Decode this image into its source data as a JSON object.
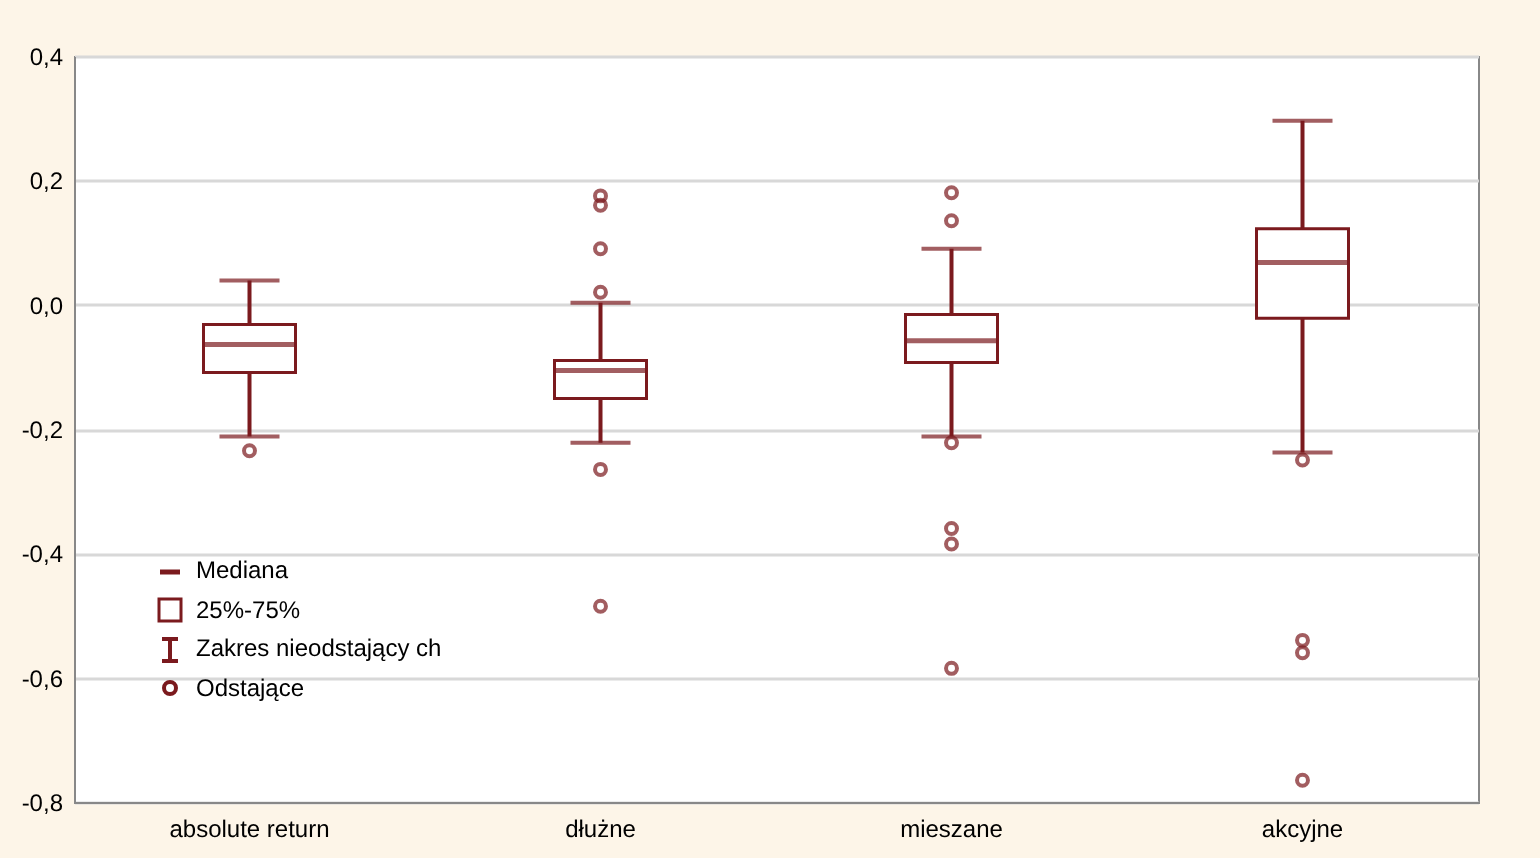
{
  "chart_data": {
    "type": "box",
    "categories": [
      "absolute return",
      "dłużne",
      "mieszane",
      "akcyjne"
    ],
    "boxes": [
      {
        "low": -0.212,
        "q1": -0.109,
        "median": -0.064,
        "q3": -0.032,
        "high": 0.039,
        "outliers": [
          -0.235
        ]
      },
      {
        "low": -0.222,
        "q1": -0.151,
        "median": -0.106,
        "q3": -0.09,
        "high": 0.003,
        "outliers": [
          0.175,
          0.16,
          0.09,
          0.02,
          -0.265,
          -0.485
        ]
      },
      {
        "low": -0.212,
        "q1": -0.093,
        "median": -0.058,
        "q3": -0.016,
        "high": 0.09,
        "outliers": [
          0.18,
          0.135,
          -0.222,
          -0.36,
          -0.385,
          -0.585
        ]
      },
      {
        "low": -0.238,
        "q1": -0.022,
        "median": 0.068,
        "q3": 0.122,
        "high": 0.296,
        "outliers": [
          -0.25,
          -0.54,
          -0.56,
          -0.765
        ]
      }
    ],
    "color": "#7b1a1e",
    "ylim": [
      -0.8,
      0.4
    ],
    "yticks": [
      {
        "value": -0.8,
        "label": "-0,8"
      },
      {
        "value": -0.6,
        "label": "-0,6"
      },
      {
        "value": -0.4,
        "label": "-0,4"
      },
      {
        "value": -0.2,
        "label": "-0,2"
      },
      {
        "value": 0,
        "label": "0,0"
      },
      {
        "value": 0.2,
        "label": "0,2"
      },
      {
        "value": 0.4,
        "label": "0,4"
      }
    ],
    "grid": "y",
    "marker": "circle",
    "annotations": [
      "Mediana",
      "25%-75%",
      "Zakres nieodstający ch",
      "Odstające"
    ]
  }
}
